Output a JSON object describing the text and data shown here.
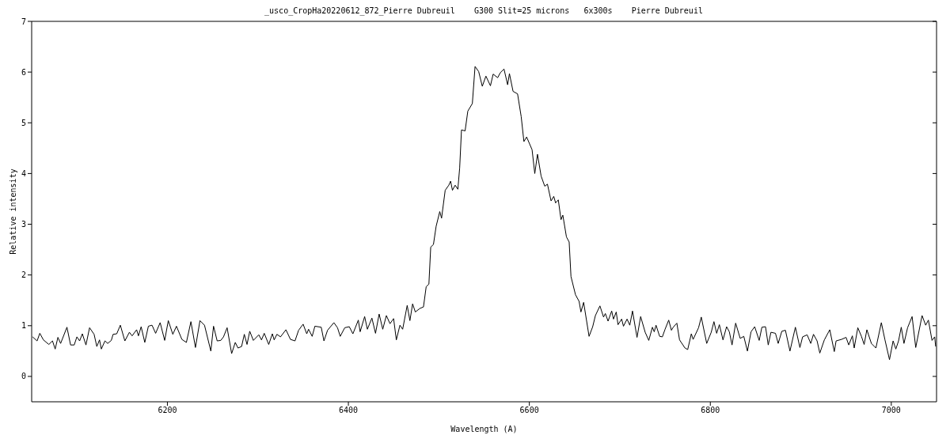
{
  "chart_data": {
    "type": "line",
    "title": "_usco_CropHa20220612_872_Pierre Dubreuil    G300 Slit=25 microns   6x300s    Pierre Dubreuil",
    "xlabel": "Wavelength (A)",
    "ylabel": "Relative intensity",
    "xlim": [
      6050,
      7050
    ],
    "xticks": [
      6200,
      6400,
      6600,
      6800,
      7000
    ],
    "ylim": [
      -0.5,
      7
    ],
    "yticks": [
      0,
      1,
      2,
      3,
      4,
      5,
      6,
      7
    ],
    "grid": false,
    "legend": false,
    "marker": "none",
    "line_style": "solid",
    "series": [
      {
        "color": "#000000",
        "x": [
          6051,
          6056,
          6059,
          6063,
          6069,
          6073,
          6076,
          6079,
          6082,
          6089,
          6093,
          6097,
          6100,
          6103,
          6106,
          6110,
          6114,
          6119,
          6122,
          6125,
          6127,
          6131,
          6134,
          6138,
          6140,
          6144,
          6148,
          6153,
          6158,
          6161,
          6166,
          6168,
          6171,
          6175,
          6179,
          6183,
          6187,
          6192,
          6197,
          6201,
          6206,
          6210,
          6216,
          6221,
          6226,
          6231,
          6236,
          6241,
          6248,
          6251,
          6255,
          6259,
          6262,
          6266,
          6271,
          6275,
          6278,
          6282,
          6285,
          6288,
          6291,
          6295,
          6301,
          6304,
          6307,
          6312,
          6316,
          6318,
          6321,
          6325,
          6331,
          6336,
          6341,
          6345,
          6350,
          6354,
          6356,
          6360,
          6363,
          6370,
          6373,
          6377,
          6384,
          6388,
          6391,
          6396,
          6401,
          6405,
          6411,
          6413,
          6418,
          6421,
          6426,
          6430,
          6434,
          6438,
          6442,
          6446,
          6450,
          6453,
          6457,
          6460,
          6465,
          6468,
          6471,
          6474,
          6479,
          6483,
          6486,
          6489,
          6491,
          6494,
          6497,
          6501,
          6503,
          6507,
          6511,
          6513,
          6515,
          6518,
          6521,
          6523,
          6525,
          6529,
          6532,
          6537,
          6540,
          6544,
          6548,
          6552,
          6557,
          6560,
          6565,
          6568,
          6572,
          6576,
          6578,
          6582,
          6587,
          6591,
          6594,
          6597,
          6603,
          6606,
          6609,
          6613,
          6617,
          6620,
          6624,
          6627,
          6629,
          6632,
          6635,
          6637,
          6641,
          6644,
          6646,
          6651,
          6655,
          6657,
          6660,
          6666,
          6670,
          6673,
          6678,
          6682,
          6684,
          6687,
          6691,
          6693,
          6696,
          6698,
          6702,
          6704,
          6708,
          6711,
          6714,
          6719,
          6723,
          6728,
          6732,
          6736,
          6738,
          6740,
          6744,
          6747,
          6750,
          6754,
          6757,
          6759,
          6763,
          6766,
          6772,
          6775,
          6779,
          6781,
          6787,
          6790,
          6796,
          6801,
          6804,
          6807,
          6810,
          6814,
          6818,
          6821,
          6824,
          6828,
          6833,
          6837,
          6841,
          6845,
          6849,
          6854,
          6857,
          6861,
          6864,
          6867,
          6872,
          6875,
          6879,
          6883,
          6888,
          6894,
          6899,
          6902,
          6907,
          6911,
          6914,
          6918,
          6921,
          6926,
          6932,
          6937,
          6939,
          6945,
          6950,
          6953,
          6957,
          6959,
          6963,
          6967,
          6970,
          6973,
          6978,
          6983,
          6989,
          6993,
          6998,
          7002,
          7005,
          7008,
          7011,
          7014,
          7018,
          7023,
          7027,
          7034,
          7038,
          7041,
          7045,
          7048,
          7049
        ],
        "values": [
          0.78,
          0.7,
          0.85,
          0.72,
          0.63,
          0.7,
          0.54,
          0.77,
          0.65,
          0.97,
          0.62,
          0.62,
          0.78,
          0.7,
          0.84,
          0.62,
          0.96,
          0.83,
          0.59,
          0.72,
          0.54,
          0.7,
          0.65,
          0.71,
          0.83,
          0.84,
          1.01,
          0.7,
          0.87,
          0.8,
          0.92,
          0.8,
          0.98,
          0.67,
          0.99,
          1.01,
          0.85,
          1.06,
          0.71,
          1.1,
          0.83,
          0.99,
          0.73,
          0.67,
          1.08,
          0.57,
          1.1,
          1.01,
          0.5,
          0.99,
          0.7,
          0.71,
          0.78,
          0.96,
          0.45,
          0.67,
          0.56,
          0.59,
          0.83,
          0.63,
          0.89,
          0.71,
          0.82,
          0.72,
          0.85,
          0.63,
          0.84,
          0.72,
          0.83,
          0.78,
          0.92,
          0.73,
          0.7,
          0.91,
          1.03,
          0.84,
          0.93,
          0.79,
          0.99,
          0.97,
          0.7,
          0.91,
          1.06,
          0.96,
          0.79,
          0.96,
          0.98,
          0.84,
          1.11,
          0.88,
          1.18,
          0.93,
          1.15,
          0.85,
          1.23,
          0.93,
          1.2,
          1.04,
          1.14,
          0.72,
          1.01,
          0.93,
          1.4,
          1.1,
          1.43,
          1.27,
          1.34,
          1.37,
          1.77,
          1.82,
          2.55,
          2.6,
          2.96,
          3.25,
          3.12,
          3.67,
          3.77,
          3.85,
          3.67,
          3.77,
          3.69,
          4.11,
          4.86,
          4.84,
          5.23,
          5.38,
          6.11,
          6.01,
          5.72,
          5.92,
          5.73,
          5.96,
          5.89,
          5.99,
          6.06,
          5.75,
          5.97,
          5.62,
          5.57,
          5.12,
          4.63,
          4.72,
          4.47,
          4.0,
          4.38,
          3.95,
          3.75,
          3.79,
          3.46,
          3.55,
          3.42,
          3.48,
          3.09,
          3.18,
          2.75,
          2.65,
          1.97,
          1.61,
          1.48,
          1.27,
          1.46,
          0.79,
          0.98,
          1.2,
          1.39,
          1.17,
          1.24,
          1.09,
          1.29,
          1.13,
          1.27,
          1.02,
          1.13,
          0.99,
          1.13,
          1.01,
          1.29,
          0.77,
          1.18,
          0.87,
          0.71,
          0.97,
          0.88,
          1.01,
          0.79,
          0.78,
          0.93,
          1.11,
          0.91,
          0.97,
          1.05,
          0.72,
          0.56,
          0.53,
          0.84,
          0.73,
          0.96,
          1.17,
          0.65,
          0.87,
          1.08,
          0.85,
          1.02,
          0.72,
          0.98,
          0.88,
          0.62,
          1.05,
          0.75,
          0.79,
          0.5,
          0.88,
          0.98,
          0.71,
          0.97,
          0.98,
          0.62,
          0.87,
          0.85,
          0.65,
          0.89,
          0.91,
          0.5,
          0.97,
          0.57,
          0.78,
          0.82,
          0.65,
          0.83,
          0.7,
          0.46,
          0.72,
          0.92,
          0.49,
          0.7,
          0.73,
          0.77,
          0.62,
          0.8,
          0.56,
          0.96,
          0.79,
          0.63,
          0.92,
          0.65,
          0.56,
          1.06,
          0.72,
          0.33,
          0.7,
          0.54,
          0.7,
          0.97,
          0.65,
          0.96,
          1.18,
          0.57,
          1.2,
          1.01,
          1.11,
          0.71,
          0.78,
          0.59
        ]
      }
    ]
  }
}
